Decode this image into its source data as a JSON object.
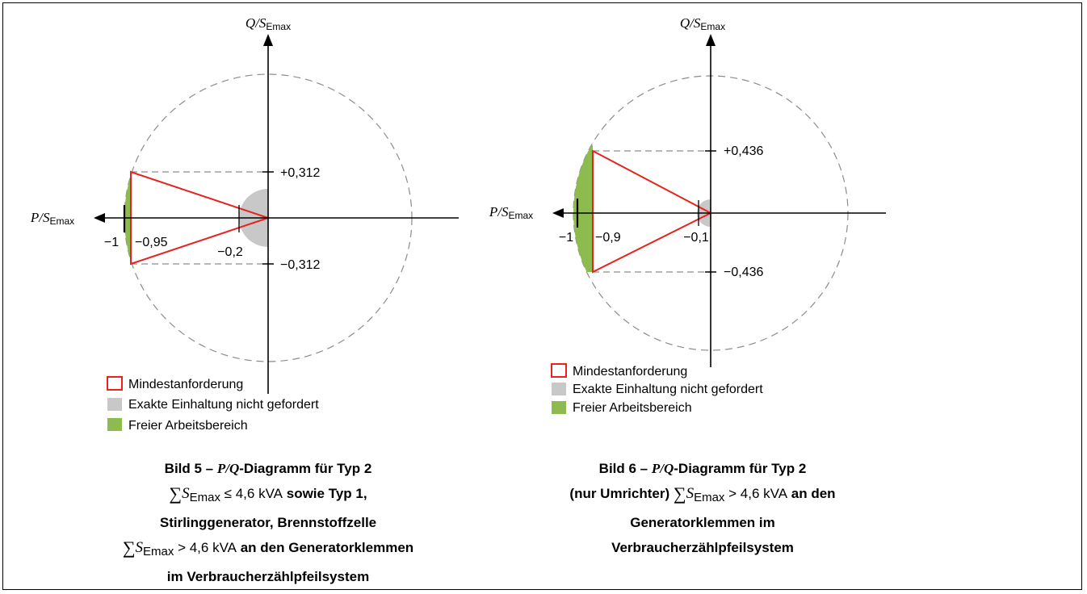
{
  "diagram1": {
    "y_axis": {
      "sym": "Q",
      "sep": "/",
      "s": "S",
      "sub": "Emax"
    },
    "x_axis": {
      "sym": "P",
      "sep": "/",
      "s": "S",
      "sub": "Emax"
    },
    "q_plus": "+0,312",
    "q_minus": "−0,312",
    "tick_m1": "−1",
    "tick_p": "−0,95",
    "tick_grey": "−0,2",
    "legend": [
      "Mindestanforderung",
      "Exakte Einhaltung nicht gefordert",
      "Freier Arbeitsbereich"
    ]
  },
  "diagram2": {
    "y_axis": {
      "sym": "Q",
      "sep": "/",
      "s": "S",
      "sub": "Emax"
    },
    "x_axis": {
      "sym": "P",
      "sep": "/",
      "s": "S",
      "sub": "Emax"
    },
    "q_plus": "+0,436",
    "q_minus": "−0,436",
    "tick_m1": "−1",
    "tick_p": "−0,9",
    "tick_grey": "−0,1",
    "legend": [
      "Mindestanforderung",
      "Exakte Einhaltung nicht gefordert",
      "Freier Arbeitsbereich"
    ]
  },
  "caption1": {
    "l1_a": "Bild 5 – ",
    "l1_it": "P/Q",
    "l1_b": "-Diagramm für Typ 2",
    "l2_sum": "∑",
    "l2_s": "S",
    "l2_sub": "Emax",
    "l2_rel": " ≤ 4,6 kVA",
    "l2_b": " sowie Typ 1,",
    "l3": "Stirlinggenerator, Brennstoffzelle",
    "l4_sum": "∑",
    "l4_s": "S",
    "l4_sub": "Emax",
    "l4_rel": " > 4,6 kVA",
    "l4_b": " an den Generatorklemmen",
    "l5": "im Verbraucherzählpfeilsystem"
  },
  "caption2": {
    "l1_a": "Bild 6 – ",
    "l1_it": "P/Q",
    "l1_b": "-Diagramm für Typ 2",
    "l2_a": "(nur Umrichter) ",
    "l2_sum": "∑",
    "l2_s": "S",
    "l2_sub": "Emax",
    "l2_rel": " > 4,6 kVA",
    "l2_b": " an den",
    "l3": "Generatorklemmen im",
    "l4": "Verbraucherzählpfeilsystem"
  },
  "colors": {
    "red": "#e8231d",
    "grey": "#c8c8c8",
    "green": "#8dbb4e",
    "dash": "#8c8c8c"
  }
}
